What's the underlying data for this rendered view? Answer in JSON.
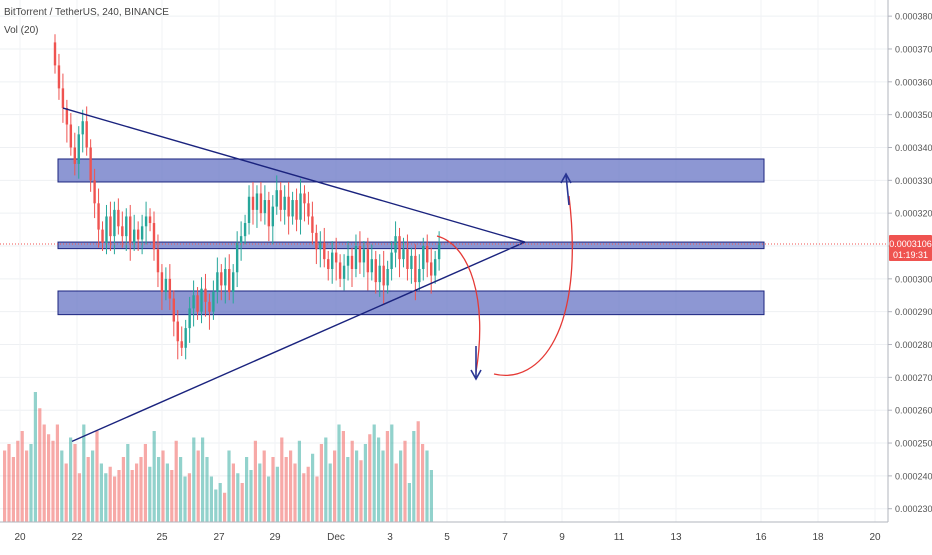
{
  "header": {
    "symbol_line": "BitTorrent / TetherUS, 240, BINANCE",
    "volume_line": "Vol (20)"
  },
  "price_badge": {
    "price": "0.0003106",
    "countdown": "01:19:31",
    "color": "#ef5350"
  },
  "colors": {
    "up": "#26a69a",
    "down": "#ef5350",
    "zone_fill": "#5c6bc0",
    "zone_stroke": "#1a237e",
    "triangle": "#1a237e",
    "arrow_blue": "#283593",
    "arrow_red": "#e53935"
  },
  "chart_data": {
    "type": "candlestick",
    "y_axis_ticks": [
      "0.0003800",
      "0.0003700",
      "0.0003600",
      "0.0003500",
      "0.0003400",
      "0.0003300",
      "0.0003200",
      "0.0003100",
      "0.0003000",
      "0.0002900",
      "0.0002800",
      "0.0002700",
      "0.0002600",
      "0.0002500",
      "0.0002400",
      "0.0002300"
    ],
    "x_axis_ticks": [
      "20",
      "22",
      "25",
      "27",
      "29",
      "Dec",
      "3",
      "5",
      "7",
      "9",
      "11",
      "13",
      "16",
      "18",
      "20"
    ],
    "ylim": [
      0.000229,
      0.000384
    ],
    "current_price": 0.0003106,
    "ohlc_start_price": 0.000372,
    "ohlc_closes": [
      0.000365,
      0.000358,
      0.000352,
      0.000347,
      0.00034,
      0.000335,
      0.000344,
      0.000348,
      0.00034,
      0.00033,
      0.000323,
      0.000315,
      0.000311,
      0.000319,
      0.000313,
      0.000321,
      0.000316,
      0.000313,
      0.000319,
      0.000311,
      0.000315,
      0.000312,
      0.000316,
      0.000319,
      0.000317,
      0.000309,
      0.000302,
      0.000296,
      0.0003,
      0.000294,
      0.000287,
      0.000281,
      0.000279,
      0.000285,
      0.000291,
      0.000295,
      0.00029,
      0.000297,
      0.000293,
      0.00029,
      0.000296,
      0.000302,
      0.000298,
      0.000303,
      0.000296,
      0.000302,
      0.000311,
      0.000313,
      0.000317,
      0.000325,
      0.000321,
      0.000326,
      0.00032,
      0.000324,
      0.000316,
      0.000322,
      0.000327,
      0.000321,
      0.000325,
      0.000319,
      0.000324,
      0.000318,
      0.000326,
      0.000323,
      0.000319,
      0.000314,
      0.000309,
      0.000311,
      0.000306,
      0.000303,
      0.000308,
      0.000305,
      0.0003,
      0.000304,
      0.000307,
      0.000303,
      0.00031,
      0.000305,
      0.000309,
      0.000302,
      0.000306,
      0.000299,
      0.000304,
      0.000298,
      0.000303,
      0.000308,
      0.000313,
      0.000306,
      0.000309,
      0.000303,
      0.000307,
      0.000299,
      0.000303,
      0.00031,
      0.000305,
      0.000301,
      0.000306,
      0.000311
    ],
    "volumes": [
      22,
      24,
      20,
      25,
      28,
      22,
      24,
      40,
      35,
      30,
      27,
      25,
      30,
      22,
      18,
      26,
      24,
      15,
      30,
      20,
      22,
      28,
      18,
      15,
      17,
      14,
      16,
      20,
      24,
      16,
      18,
      20,
      24,
      17,
      28,
      20,
      22,
      18,
      16,
      25,
      20,
      14,
      15,
      26,
      22,
      26,
      20,
      14,
      10,
      12,
      9,
      22,
      18,
      15,
      12,
      20,
      16,
      25,
      18,
      22,
      14,
      20,
      17,
      26,
      20,
      22,
      18,
      25,
      15,
      17,
      21,
      14,
      24,
      26,
      18,
      22,
      30,
      28,
      20,
      25,
      22,
      19,
      24,
      27,
      30,
      26,
      22,
      28,
      30,
      18,
      22,
      25,
      12,
      28,
      31,
      24,
      22,
      16
    ],
    "resistance_zones": [
      [
        0.0003295,
        0.0003365
      ],
      [
        0.0003092,
        0.0003112
      ],
      [
        0.0002891,
        0.0002963
      ]
    ],
    "triangle_upper": {
      "from_price": 0.000352,
      "apex_price": 0.0003112
    },
    "triangle_lower": {
      "from_price": 0.0002505,
      "apex_price": 0.0003112
    }
  }
}
